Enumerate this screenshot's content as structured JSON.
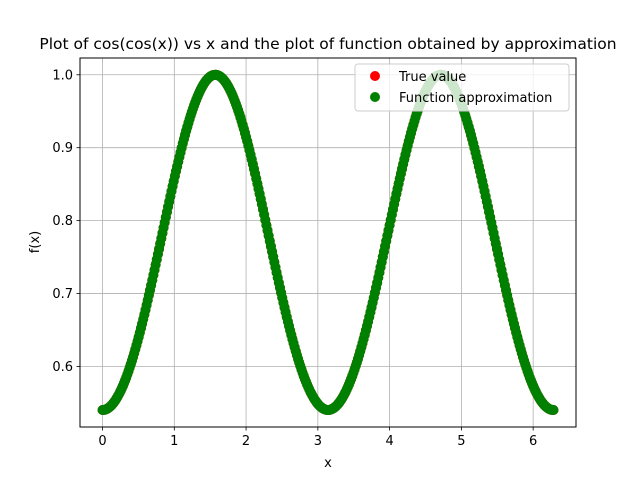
{
  "chart_data": {
    "type": "scatter",
    "title": "Plot of cos(cos(x)) vs x and the plot of function obtained by approximation",
    "xlabel": "x",
    "ylabel": "f(x)",
    "xlim": [
      -0.314,
      6.597
    ],
    "ylim": [
      0.517,
      1.023
    ],
    "x_ticks": [
      "0",
      "1",
      "2",
      "3",
      "4",
      "5",
      "6"
    ],
    "y_ticks": [
      "0.6",
      "0.7",
      "0.8",
      "0.9",
      "1.0"
    ],
    "grid": true,
    "legend_position": "top-right",
    "x_range": [
      0,
      6.2832
    ],
    "function": "cos(cos(x))",
    "point_count": 400,
    "series": [
      {
        "name": "True value",
        "color": "#ff0000",
        "marker": "circle"
      },
      {
        "name": "Function approximation",
        "color": "#008000",
        "marker": "circle"
      }
    ]
  }
}
